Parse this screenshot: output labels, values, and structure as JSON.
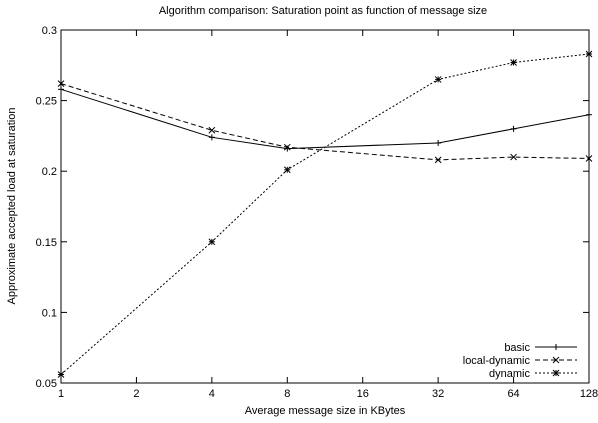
{
  "chart_data": {
    "type": "line",
    "title": "Algorithm comparison: Saturation point as function of message size",
    "xlabel": "Average message size in KBytes",
    "ylabel": "Approximate accepted load at saturation",
    "x_scale": "log2",
    "x": [
      1,
      4,
      8,
      32,
      64,
      128
    ],
    "xticks": [
      1,
      2,
      4,
      8,
      16,
      32,
      64,
      128
    ],
    "xtick_labels": [
      "1",
      "2",
      "4",
      "8",
      "16",
      "32",
      "64",
      "128"
    ],
    "xlim": [
      1,
      128
    ],
    "ylim": [
      0.05,
      0.3
    ],
    "yticks": [
      0.05,
      0.1,
      0.15,
      0.2,
      0.25,
      0.3
    ],
    "ytick_labels": [
      "0.05",
      "0.1",
      "0.15",
      "0.2",
      "0.25",
      "0.3"
    ],
    "grid": false,
    "legend_position": "bottom-right",
    "series": [
      {
        "name": "basic",
        "marker": "plus",
        "dash": "solid",
        "color": "#000000",
        "values": [
          0.258,
          0.224,
          0.216,
          0.22,
          0.23,
          0.24
        ]
      },
      {
        "name": "local-dynamic",
        "marker": "cross",
        "dash": "dashed",
        "color": "#000000",
        "values": [
          0.262,
          0.229,
          0.217,
          0.208,
          0.21,
          0.209
        ]
      },
      {
        "name": "dynamic",
        "marker": "star",
        "dash": "dotted",
        "color": "#000000",
        "values": [
          0.056,
          0.15,
          0.201,
          0.265,
          0.277,
          0.283
        ]
      }
    ]
  }
}
